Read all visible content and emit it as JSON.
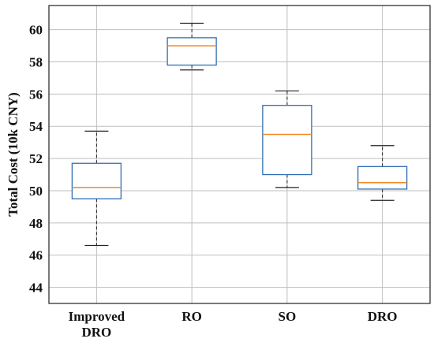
{
  "chart_data": {
    "type": "box",
    "title": "",
    "xlabel": "",
    "ylabel": "Total Cost (10k CNY)",
    "ylim": [
      43,
      61.5
    ],
    "yticks": [
      44,
      46,
      48,
      50,
      52,
      54,
      56,
      58,
      60
    ],
    "grid": true,
    "categories": [
      [
        "Improved",
        "DRO"
      ],
      [
        "RO"
      ],
      [
        "SO"
      ],
      [
        "DRO"
      ]
    ],
    "boxes": [
      {
        "whisker_low": 46.6,
        "q1": 49.5,
        "median": 50.2,
        "q3": 51.7,
        "whisker_high": 53.7
      },
      {
        "whisker_low": 57.5,
        "q1": 57.8,
        "median": 59.0,
        "q3": 59.5,
        "whisker_high": 60.4
      },
      {
        "whisker_low": 50.2,
        "q1": 51.0,
        "median": 53.5,
        "q3": 55.3,
        "whisker_high": 56.2
      },
      {
        "whisker_low": 49.4,
        "q1": 50.1,
        "median": 50.5,
        "q3": 51.5,
        "whisker_high": 52.8
      }
    ],
    "colors": {
      "box": "#2f6db5",
      "median": "#f08a24",
      "whisker": "#222222",
      "grid": "#bfbfbf",
      "axes": "#222222"
    }
  }
}
